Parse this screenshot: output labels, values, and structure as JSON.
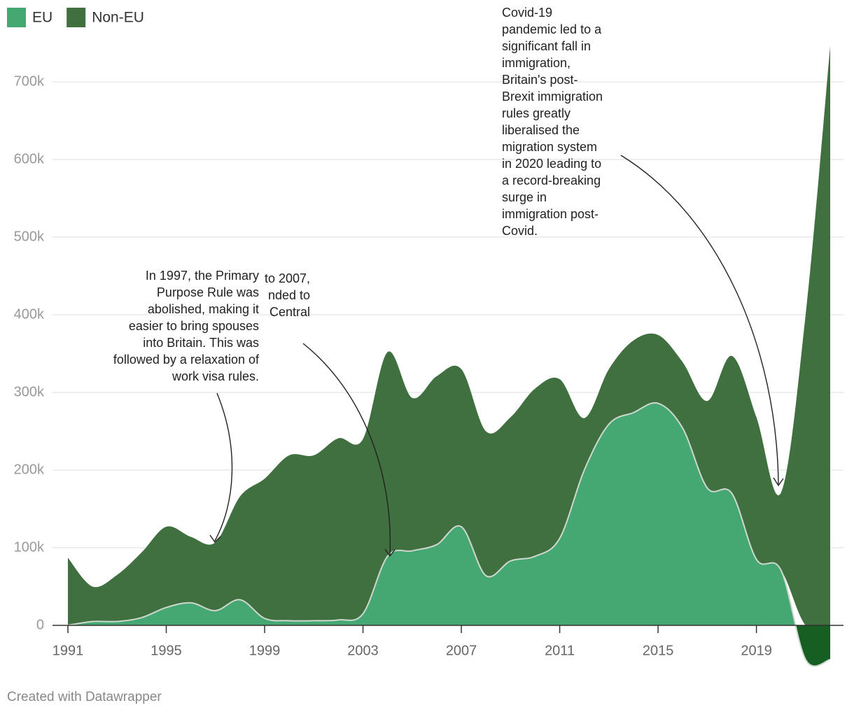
{
  "chart_data": {
    "type": "stacked-area",
    "legend_position": "top-left",
    "x": [
      1991,
      1992,
      1993,
      1994,
      1995,
      1996,
      1997,
      1998,
      1999,
      2000,
      2001,
      2002,
      2003,
      2004,
      2005,
      2006,
      2007,
      2008,
      2009,
      2010,
      2011,
      2012,
      2013,
      2014,
      2015,
      2016,
      2017,
      2018,
      2019,
      2020,
      2021,
      2022
    ],
    "series": [
      {
        "name": "EU",
        "color": "#45a872",
        "negative_color": "#155f22",
        "values": [
          0,
          5000,
          5000,
          10000,
          23000,
          29000,
          19000,
          33000,
          9000,
          6000,
          6000,
          7000,
          15000,
          89000,
          96000,
          104000,
          127000,
          64000,
          83000,
          89000,
          112000,
          200000,
          259000,
          274000,
          286000,
          254000,
          177000,
          170000,
          85000,
          71000,
          -44000,
          -44000
        ]
      },
      {
        "name": "Non-EU",
        "color": "#40703f",
        "values": [
          87000,
          45000,
          60000,
          84000,
          104000,
          85000,
          88000,
          133000,
          180000,
          213000,
          213000,
          234000,
          225000,
          263000,
          197000,
          217000,
          203000,
          186000,
          185000,
          216000,
          205000,
          67000,
          71000,
          93000,
          88000,
          85000,
          112000,
          177000,
          183000,
          100000,
          400000,
          746000
        ]
      }
    ],
    "xlim": [
      1991,
      2022
    ],
    "xticks": [
      1991,
      1995,
      1999,
      2003,
      2007,
      2011,
      2015,
      2019
    ],
    "ylim": [
      -44000,
      746000
    ],
    "yticks": [
      0,
      {
        "value": 100000,
        "label": "100k"
      },
      {
        "value": 200000,
        "label": "200k"
      },
      {
        "value": 300000,
        "label": "300k"
      },
      {
        "value": 400000,
        "label": "400k"
      },
      {
        "value": 500000,
        "label": "500k"
      },
      {
        "value": 600000,
        "label": "600k"
      },
      {
        "value": 700000,
        "label": "700k"
      }
    ],
    "grid": true,
    "annotations": [
      {
        "lines": [
          "to 2007,",
          "nded to",
          "Central"
        ]
      },
      {
        "lines": [
          "In 1997, the Primary",
          "Purpose Rule was",
          "abolished, making it",
          "easier to bring spouses",
          "into Britain. This was",
          "followed by a relaxation of",
          "work visa rules."
        ]
      },
      {
        "lines": [
          "Covid-19",
          "pandemic led to a",
          "significant fall in",
          "immigration,",
          "Britain's post-",
          "Brexit immigration",
          "rules greatly",
          "liberalised the",
          "migration system",
          "in 2020 leading to",
          "a record-breaking",
          "surge in",
          "immigration post-",
          "Covid."
        ]
      }
    ],
    "footer": "Created with Datawrapper"
  }
}
